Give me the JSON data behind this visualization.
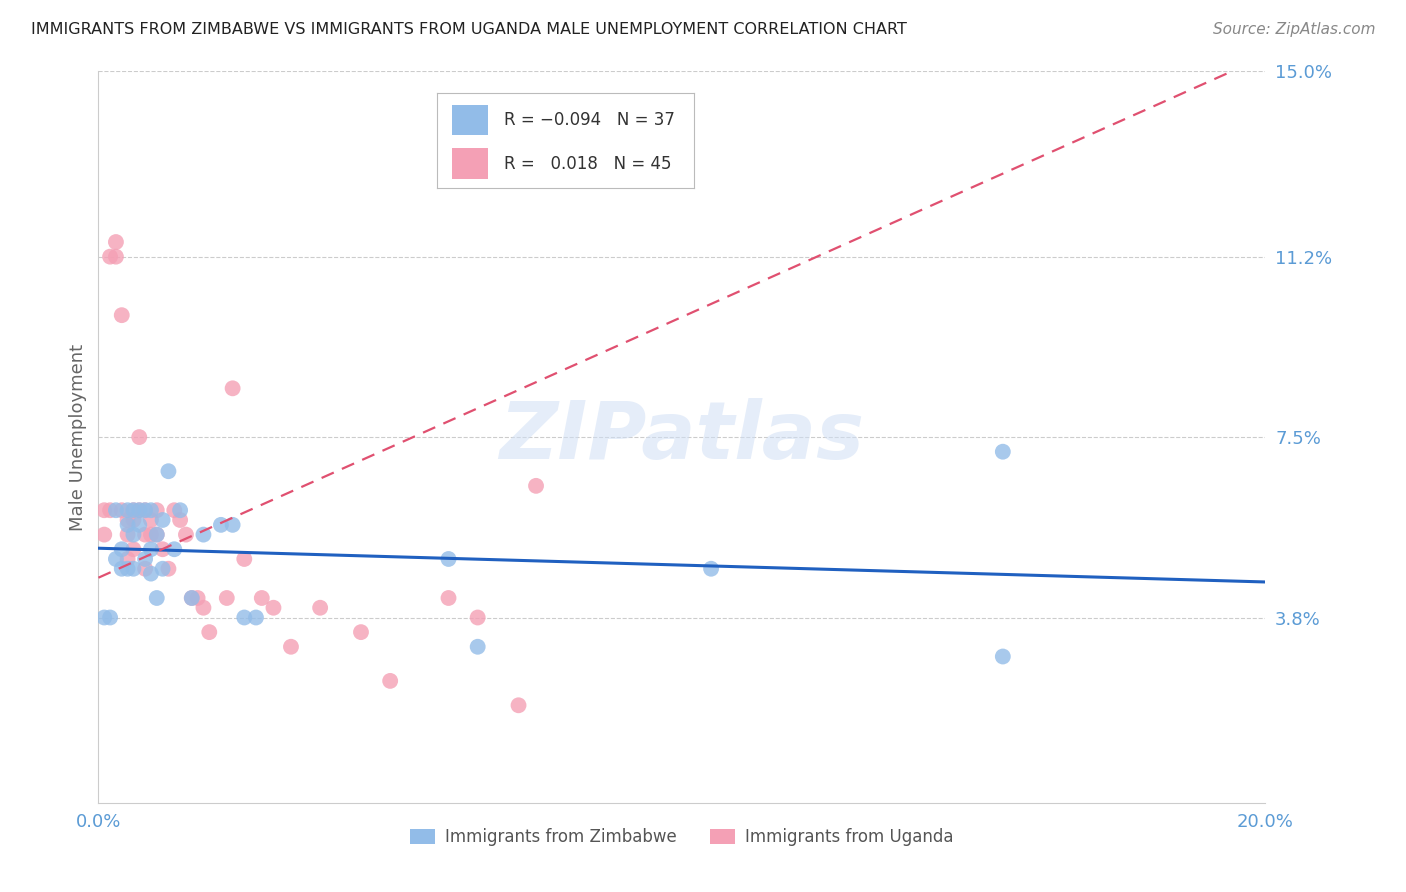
{
  "title": "IMMIGRANTS FROM ZIMBABWE VS IMMIGRANTS FROM UGANDA MALE UNEMPLOYMENT CORRELATION CHART",
  "source": "Source: ZipAtlas.com",
  "ylabel": "Male Unemployment",
  "xlim": [
    0.0,
    0.2
  ],
  "ylim": [
    0.0,
    0.15
  ],
  "yticks": [
    0.038,
    0.075,
    0.112,
    0.15
  ],
  "ytick_labels": [
    "3.8%",
    "7.5%",
    "11.2%",
    "15.0%"
  ],
  "xticks": [
    0.0,
    0.05,
    0.1,
    0.15,
    0.2
  ],
  "xtick_labels": [
    "0.0%",
    "",
    "",
    "",
    "20.0%"
  ],
  "color_zimbabwe": "#92bce8",
  "color_uganda": "#f4a0b5",
  "color_axis_text": "#5b9bd5",
  "watermark_text": "ZIPatlas",
  "zim_R": -0.094,
  "zim_N": 37,
  "uga_R": 0.018,
  "uga_N": 45,
  "zimbabwe_x": [
    0.001,
    0.002,
    0.003,
    0.003,
    0.004,
    0.004,
    0.005,
    0.005,
    0.005,
    0.006,
    0.006,
    0.006,
    0.007,
    0.007,
    0.008,
    0.008,
    0.009,
    0.009,
    0.009,
    0.01,
    0.01,
    0.011,
    0.011,
    0.012,
    0.013,
    0.014,
    0.016,
    0.018,
    0.021,
    0.023,
    0.025,
    0.027,
    0.06,
    0.065,
    0.105,
    0.155,
    0.155
  ],
  "zimbabwe_y": [
    0.038,
    0.038,
    0.05,
    0.06,
    0.052,
    0.048,
    0.06,
    0.057,
    0.048,
    0.06,
    0.055,
    0.048,
    0.06,
    0.057,
    0.06,
    0.05,
    0.06,
    0.052,
    0.047,
    0.055,
    0.042,
    0.058,
    0.048,
    0.068,
    0.052,
    0.06,
    0.042,
    0.055,
    0.057,
    0.057,
    0.038,
    0.038,
    0.05,
    0.032,
    0.048,
    0.072,
    0.03
  ],
  "uganda_x": [
    0.001,
    0.001,
    0.002,
    0.002,
    0.003,
    0.003,
    0.004,
    0.004,
    0.005,
    0.005,
    0.005,
    0.006,
    0.006,
    0.006,
    0.007,
    0.007,
    0.008,
    0.008,
    0.008,
    0.009,
    0.009,
    0.01,
    0.01,
    0.011,
    0.012,
    0.013,
    0.014,
    0.015,
    0.016,
    0.017,
    0.018,
    0.019,
    0.022,
    0.023,
    0.025,
    0.028,
    0.03,
    0.033,
    0.038,
    0.045,
    0.05,
    0.06,
    0.065,
    0.072,
    0.075
  ],
  "uganda_y": [
    0.06,
    0.055,
    0.06,
    0.112,
    0.115,
    0.112,
    0.1,
    0.06,
    0.058,
    0.055,
    0.05,
    0.06,
    0.058,
    0.052,
    0.075,
    0.06,
    0.06,
    0.055,
    0.048,
    0.058,
    0.055,
    0.06,
    0.055,
    0.052,
    0.048,
    0.06,
    0.058,
    0.055,
    0.042,
    0.042,
    0.04,
    0.035,
    0.042,
    0.085,
    0.05,
    0.042,
    0.04,
    0.032,
    0.04,
    0.035,
    0.025,
    0.042,
    0.038,
    0.02,
    0.065
  ]
}
